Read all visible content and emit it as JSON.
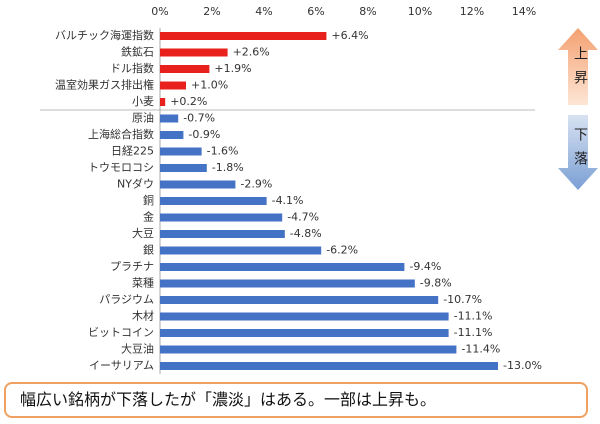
{
  "chart_data": {
    "type": "bar",
    "categories": [
      "バルチック海運指数",
      "鉄鉱石",
      "ドル指数",
      "温室効果ガス排出権",
      "小麦",
      "原油",
      "上海総合指数",
      "日経225",
      "トウモロコシ",
      "NYダウ",
      "銅",
      "金",
      "大豆",
      "銀",
      "プラチナ",
      "菜種",
      "パラジウム",
      "木材",
      "ビットコイン",
      "大豆油",
      "イーサリアム"
    ],
    "values": [
      6.4,
      2.6,
      1.9,
      1.0,
      0.2,
      -0.7,
      -0.9,
      -1.6,
      -1.8,
      -2.9,
      -4.1,
      -4.7,
      -4.8,
      -6.2,
      -9.4,
      -9.8,
      -10.7,
      -11.1,
      -11.1,
      -11.4,
      -13.0
    ],
    "value_labels": [
      "+6.4%",
      "+2.6%",
      "+1.9%",
      "+1.0%",
      "+0.2%",
      "-0.7%",
      "-0.9%",
      "-1.6%",
      "-1.8%",
      "-2.9%",
      "-4.1%",
      "-4.7%",
      "-4.8%",
      "-6.2%",
      "-9.4%",
      "-9.8%",
      "-10.7%",
      "-11.1%",
      "-11.1%",
      "-11.4%",
      "-13.0%"
    ],
    "color_up": "#e8211d",
    "color_down": "#4472c4",
    "xlim": [
      0,
      14
    ],
    "xticks": [
      {
        "value": 0,
        "label": "0%"
      },
      {
        "value": 2,
        "label": "2%"
      },
      {
        "value": 4,
        "label": "4%"
      },
      {
        "value": 6,
        "label": "6%"
      },
      {
        "value": 8,
        "label": "8%"
      },
      {
        "value": 10,
        "label": "10%"
      },
      {
        "value": 12,
        "label": "12%"
      },
      {
        "value": 14,
        "label": "14%"
      }
    ],
    "annotations": {
      "up": "上昇",
      "down": "下落"
    }
  },
  "footer": "幅広い銘柄が下落したが「濃淡」はある。一部は上昇も。"
}
